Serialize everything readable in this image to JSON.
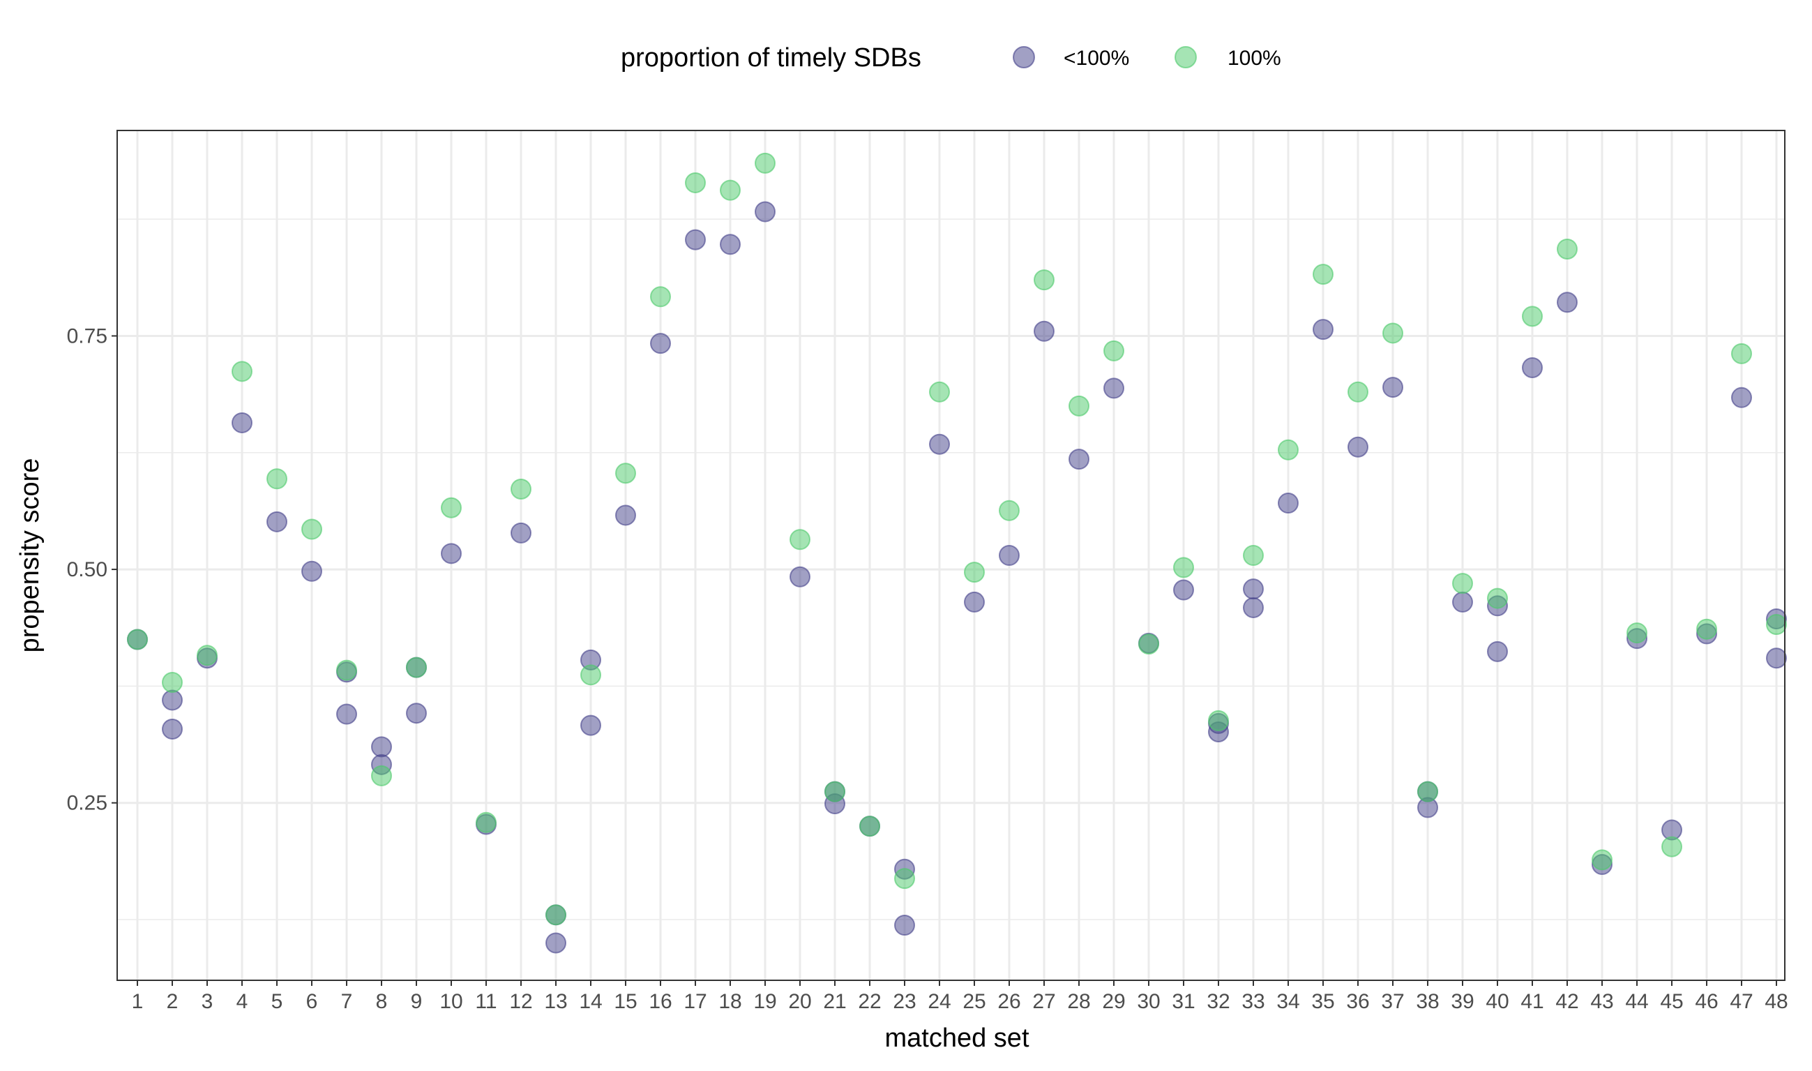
{
  "chart_data": {
    "type": "scatter",
    "xlabel": "matched set",
    "ylabel": "propensity score",
    "legend": {
      "title": "proportion of timely SDBs",
      "position": "top",
      "entries": [
        {
          "label": "<100%",
          "color": "#44418a"
        },
        {
          "label": "100%",
          "color": "#4cc96a"
        }
      ]
    },
    "x_categories": [
      "1",
      "2",
      "3",
      "4",
      "5",
      "6",
      "7",
      "8",
      "9",
      "10",
      "11",
      "12",
      "13",
      "14",
      "15",
      "16",
      "17",
      "18",
      "19",
      "20",
      "21",
      "22",
      "23",
      "24",
      "25",
      "26",
      "27",
      "28",
      "29",
      "30",
      "31",
      "32",
      "33",
      "34",
      "35",
      "36",
      "37",
      "38",
      "39",
      "40",
      "41",
      "42",
      "43",
      "44",
      "45",
      "46",
      "47",
      "48"
    ],
    "ylim": [
      0.06,
      0.97
    ],
    "y_ticks": [
      0.25,
      0.5,
      0.75
    ],
    "y_tick_labels": [
      "0.25",
      "0.50",
      "0.75"
    ],
    "grid": true,
    "point_opacity": 0.5,
    "series": [
      {
        "name": "<100%",
        "color": "#44418a",
        "points": [
          [
            1,
            0.425
          ],
          [
            2,
            0.36
          ],
          [
            2,
            0.329
          ],
          [
            3,
            0.405
          ],
          [
            4,
            0.657
          ],
          [
            5,
            0.551
          ],
          [
            6,
            0.498
          ],
          [
            7,
            0.39
          ],
          [
            7,
            0.345
          ],
          [
            8,
            0.31
          ],
          [
            8,
            0.291
          ],
          [
            9,
            0.395
          ],
          [
            9,
            0.346
          ],
          [
            10,
            0.517
          ],
          [
            11,
            0.227
          ],
          [
            12,
            0.539
          ],
          [
            13,
            0.13
          ],
          [
            13,
            0.1
          ],
          [
            14,
            0.403
          ],
          [
            14,
            0.333
          ],
          [
            15,
            0.558
          ],
          [
            16,
            0.742
          ],
          [
            17,
            0.853
          ],
          [
            18,
            0.848
          ],
          [
            19,
            0.883
          ],
          [
            20,
            0.492
          ],
          [
            21,
            0.262
          ],
          [
            21,
            0.249
          ],
          [
            22,
            0.225
          ],
          [
            23,
            0.179
          ],
          [
            23,
            0.119
          ],
          [
            24,
            0.634
          ],
          [
            25,
            0.465
          ],
          [
            26,
            0.515
          ],
          [
            27,
            0.755
          ],
          [
            28,
            0.618
          ],
          [
            29,
            0.694
          ],
          [
            30,
            0.421
          ],
          [
            31,
            0.478
          ],
          [
            32,
            0.335
          ],
          [
            32,
            0.326
          ],
          [
            33,
            0.479
          ],
          [
            33,
            0.459
          ],
          [
            34,
            0.571
          ],
          [
            35,
            0.757
          ],
          [
            36,
            0.631
          ],
          [
            37,
            0.695
          ],
          [
            38,
            0.262
          ],
          [
            38,
            0.245
          ],
          [
            39,
            0.465
          ],
          [
            40,
            0.461
          ],
          [
            40,
            0.412
          ],
          [
            41,
            0.716
          ],
          [
            42,
            0.786
          ],
          [
            43,
            0.184
          ],
          [
            44,
            0.426
          ],
          [
            45,
            0.221
          ],
          [
            46,
            0.431
          ],
          [
            47,
            0.684
          ],
          [
            48,
            0.447
          ],
          [
            48,
            0.405
          ]
        ]
      },
      {
        "name": "100%",
        "color": "#4cc96a",
        "points": [
          [
            1,
            0.425
          ],
          [
            2,
            0.379
          ],
          [
            3,
            0.408
          ],
          [
            4,
            0.712
          ],
          [
            5,
            0.597
          ],
          [
            6,
            0.543
          ],
          [
            7,
            0.392
          ],
          [
            8,
            0.279
          ],
          [
            9,
            0.395
          ],
          [
            10,
            0.566
          ],
          [
            11,
            0.229
          ],
          [
            12,
            0.586
          ],
          [
            13,
            0.13
          ],
          [
            14,
            0.387
          ],
          [
            15,
            0.603
          ],
          [
            16,
            0.792
          ],
          [
            17,
            0.914
          ],
          [
            18,
            0.906
          ],
          [
            19,
            0.935
          ],
          [
            20,
            0.532
          ],
          [
            21,
            0.262
          ],
          [
            22,
            0.225
          ],
          [
            23,
            0.169
          ],
          [
            24,
            0.69
          ],
          [
            25,
            0.497
          ],
          [
            26,
            0.563
          ],
          [
            27,
            0.81
          ],
          [
            28,
            0.675
          ],
          [
            29,
            0.734
          ],
          [
            30,
            0.42
          ],
          [
            31,
            0.502
          ],
          [
            32,
            0.338
          ],
          [
            33,
            0.515
          ],
          [
            34,
            0.628
          ],
          [
            35,
            0.816
          ],
          [
            36,
            0.69
          ],
          [
            37,
            0.753
          ],
          [
            38,
            0.262
          ],
          [
            39,
            0.485
          ],
          [
            40,
            0.469
          ],
          [
            41,
            0.771
          ],
          [
            42,
            0.843
          ],
          [
            43,
            0.189
          ],
          [
            44,
            0.432
          ],
          [
            45,
            0.203
          ],
          [
            46,
            0.436
          ],
          [
            47,
            0.731
          ],
          [
            48,
            0.441
          ]
        ]
      }
    ]
  }
}
